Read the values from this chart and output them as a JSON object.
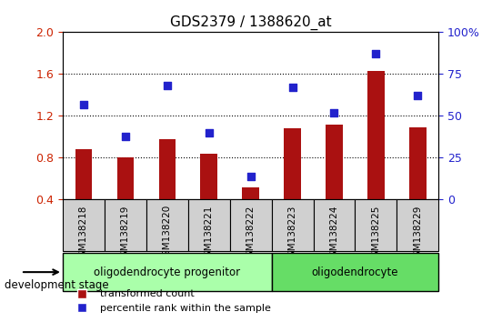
{
  "title": "GDS2379 / 1388620_at",
  "samples": [
    "GSM138218",
    "GSM138219",
    "GSM138220",
    "GSM138221",
    "GSM138222",
    "GSM138223",
    "GSM138224",
    "GSM138225",
    "GSM138229"
  ],
  "transformed_count": [
    0.88,
    0.8,
    0.98,
    0.84,
    0.52,
    1.08,
    1.12,
    1.63,
    1.09
  ],
  "percentile_rank": [
    57,
    38,
    68,
    40,
    14,
    67,
    52,
    87,
    62
  ],
  "bar_color": "#aa1111",
  "dot_color": "#2222cc",
  "ylim_left": [
    0.4,
    2.0
  ],
  "ylim_right": [
    0,
    100
  ],
  "yticks_left": [
    0.4,
    0.8,
    1.2,
    1.6,
    2.0
  ],
  "yticks_right": [
    0,
    25,
    50,
    75,
    100
  ],
  "yticklabels_right": [
    "0",
    "25",
    "50",
    "75",
    "100%"
  ],
  "groups": [
    {
      "label": "oligodendrocyte progenitor",
      "start": 0,
      "end": 5,
      "color": "#aaffaa"
    },
    {
      "label": "oligodendrocyte",
      "start": 5,
      "end": 9,
      "color": "#66dd66"
    }
  ],
  "group_box_color": "#aaffaa",
  "group_box_color2": "#66dd66",
  "xlabel_stage": "development stage",
  "legend_bar": "transformed count",
  "legend_dot": "percentile rank within the sample",
  "background_color": "#ffffff",
  "plot_bg_color": "#ffffff",
  "grid_color": "#000000",
  "tick_label_color_left": "#cc2200",
  "tick_label_color_right": "#2222cc",
  "bar_width": 0.4,
  "dot_size": 40
}
